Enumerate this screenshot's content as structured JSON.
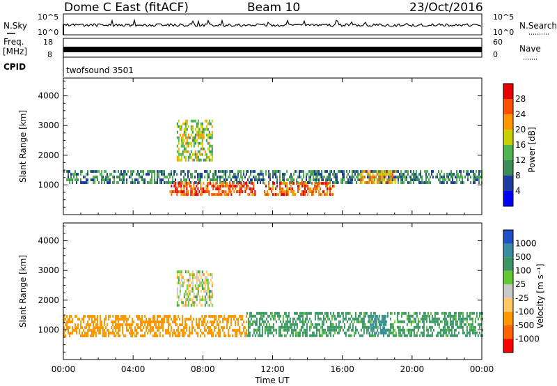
{
  "header": {
    "title": "Dome C East (fitACF)",
    "beam": "Beam 10",
    "date": "23/Oct/2016"
  },
  "strips": {
    "nsky": {
      "label": "N.Sky",
      "right_label": "N.Search",
      "ticks_left": [
        "10^5",
        "10^0"
      ],
      "ticks_right": [
        "10^5",
        "10^0"
      ]
    },
    "freq": {
      "label": "Freq.",
      "unit": "[MHz]",
      "ticks_left": [
        "18",
        "8"
      ],
      "right_label": "Nave",
      "ticks_right": [
        "60",
        "0"
      ]
    },
    "cpid": {
      "label": "CPID",
      "value": "twofsound 3501"
    }
  },
  "colors": {
    "power_scale": [
      "#0000ff",
      "#1e3ca0",
      "#3c8c5a",
      "#50b450",
      "#c8d200",
      "#ff9600",
      "#ff5000",
      "#e60000"
    ],
    "velocity_scale": [
      "#ff0000",
      "#ff6400",
      "#ff9600",
      "#ffc864",
      "#c8c8c8",
      "#64c832",
      "#3c9664",
      "#3c8ca0",
      "#1e50c8"
    ]
  },
  "chart_data": [
    {
      "type": "heatmap",
      "name": "power-panel",
      "ylabel": "Slant Range [km]",
      "y_ticks": [
        1000,
        2000,
        3000,
        4000
      ],
      "ylim": [
        0,
        4600
      ],
      "x_ticks": [
        "00:00",
        "04:00",
        "08:00",
        "12:00",
        "16:00",
        "20:00",
        "00:00"
      ],
      "xlim_hours": [
        0,
        24
      ],
      "colorbar": {
        "label": "Power [dB]",
        "ticks": [
          "4",
          "8",
          "12",
          "16",
          "20",
          "24",
          "28"
        ],
        "range": [
          0,
          32
        ]
      },
      "echo_regions": [
        {
          "t_start": 0,
          "t_end": 24,
          "range_km": [
            1100,
            1500
          ],
          "value": 10
        },
        {
          "t_start": 6,
          "t_end": 11,
          "range_km": [
            700,
            1100
          ],
          "value": 26
        },
        {
          "t_start": 11.5,
          "t_end": 15.5,
          "range_km": [
            700,
            1100
          ],
          "value": 25
        },
        {
          "t_start": 17,
          "t_end": 19,
          "range_km": [
            1100,
            1500
          ],
          "value": 22
        },
        {
          "t_start": 6.5,
          "t_end": 8.5,
          "range_km": [
            1800,
            3200
          ],
          "value": 16
        }
      ]
    },
    {
      "type": "heatmap",
      "name": "velocity-panel",
      "ylabel": "Slant Range [km]",
      "y_ticks": [
        1000,
        2000,
        3000,
        4000
      ],
      "ylim": [
        0,
        4600
      ],
      "x_ticks": [
        "00:00",
        "04:00",
        "08:00",
        "12:00",
        "16:00",
        "20:00",
        "00:00"
      ],
      "xlim_hours": [
        0,
        24
      ],
      "xlabel": "Time UT",
      "colorbar": {
        "label": "Velocity [m s⁻¹]",
        "ticks": [
          "1000",
          "500",
          "100",
          "25",
          "-25",
          "-100",
          "-500",
          "-1000"
        ]
      },
      "echo_regions": [
        {
          "t_start": 0,
          "t_end": 10.5,
          "range_km": [
            800,
            1500
          ],
          "value": -300
        },
        {
          "t_start": 10.5,
          "t_end": 24,
          "range_km": [
            800,
            1600
          ],
          "value": 200
        },
        {
          "t_start": 17.5,
          "t_end": 18.5,
          "range_km": [
            900,
            1500
          ],
          "value": 800
        },
        {
          "t_start": 6.5,
          "t_end": 8.5,
          "range_km": [
            1800,
            3000
          ],
          "value": 0
        }
      ]
    }
  ]
}
